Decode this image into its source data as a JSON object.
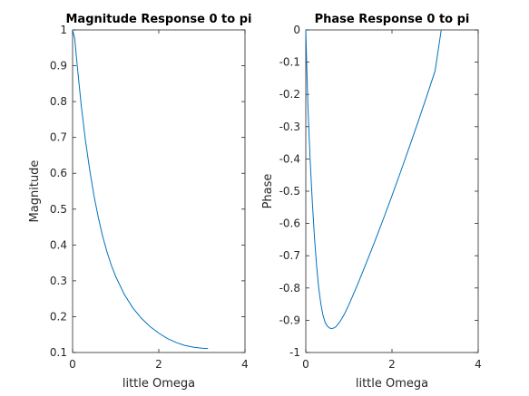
{
  "chart_data": [
    {
      "type": "line",
      "title": "Magnitude Response 0 to pi",
      "xlabel": "little Omega",
      "ylabel": "Magnitude",
      "xlim": [
        0,
        4
      ],
      "ylim": [
        0.1,
        1
      ],
      "xticks": [
        0,
        2,
        4
      ],
      "yticks": [
        0.1,
        0.2,
        0.3,
        0.4,
        0.5,
        0.6,
        0.7,
        0.8,
        0.9,
        1
      ],
      "xtick_labels": [
        "0",
        "2",
        "4"
      ],
      "ytick_labels": [
        "0.1",
        "0.2",
        "0.3",
        "0.4",
        "0.5",
        "0.6",
        "0.7",
        "0.8",
        "0.9",
        "1"
      ],
      "grid": false,
      "line_color": "#0072BD",
      "series": [
        {
          "x": [
            0,
            0.05,
            0.1,
            0.15,
            0.2,
            0.25,
            0.3,
            0.4,
            0.5,
            0.6,
            0.7,
            0.8,
            0.9,
            1.0,
            1.2,
            1.4,
            1.6,
            1.8,
            2.0,
            2.2,
            2.4,
            2.6,
            2.8,
            3.0,
            3.1416
          ],
          "y": [
            1.0,
            0.975,
            0.91,
            0.85,
            0.79,
            0.74,
            0.69,
            0.607,
            0.535,
            0.475,
            0.423,
            0.38,
            0.343,
            0.312,
            0.262,
            0.224,
            0.195,
            0.172,
            0.154,
            0.139,
            0.128,
            0.12,
            0.115,
            0.112,
            0.111
          ]
        }
      ]
    },
    {
      "type": "line",
      "title": "Phase Response 0 to pi",
      "xlabel": "little Omega",
      "ylabel": "Phase",
      "xlim": [
        0,
        4
      ],
      "ylim": [
        -1,
        0
      ],
      "xticks": [
        0,
        2,
        4
      ],
      "yticks": [
        -1,
        -0.9,
        -0.8,
        -0.7,
        -0.6,
        -0.5,
        -0.4,
        -0.3,
        -0.2,
        -0.1,
        0
      ],
      "xtick_labels": [
        "0",
        "2",
        "4"
      ],
      "ytick_labels": [
        "-1",
        "-0.9",
        "-0.8",
        "-0.7",
        "-0.6",
        "-0.5",
        "-0.4",
        "-0.3",
        "-0.2",
        "-0.1",
        "0"
      ],
      "grid": false,
      "line_color": "#0072BD",
      "series": [
        {
          "x": [
            0,
            0.02,
            0.05,
            0.1,
            0.15,
            0.2,
            0.25,
            0.3,
            0.35,
            0.4,
            0.45,
            0.5,
            0.55,
            0.6,
            0.65,
            0.7,
            0.8,
            0.9,
            1.0,
            1.2,
            1.4,
            1.6,
            1.8,
            2.0,
            2.2,
            2.4,
            2.6,
            2.8,
            3.0,
            3.1416
          ],
          "y": [
            0,
            -0.1,
            -0.24,
            -0.4,
            -0.53,
            -0.64,
            -0.73,
            -0.8,
            -0.85,
            -0.885,
            -0.907,
            -0.918,
            -0.924,
            -0.926,
            -0.924,
            -0.92,
            -0.903,
            -0.88,
            -0.852,
            -0.79,
            -0.724,
            -0.656,
            -0.586,
            -0.514,
            -0.44,
            -0.364,
            -0.287,
            -0.208,
            -0.127,
            -0.001
          ]
        }
      ]
    }
  ]
}
